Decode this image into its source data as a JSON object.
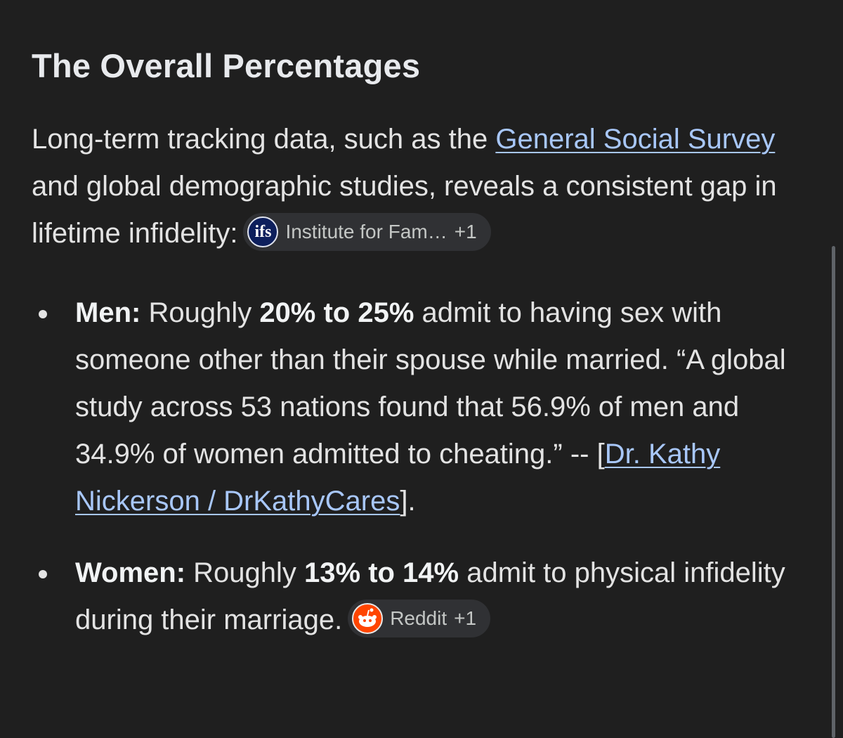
{
  "header": {
    "title": "The Overall Percentages"
  },
  "intro": {
    "text_before": "Long-term tracking data, such as the ",
    "link": "General Social Survey",
    "text_after": " and global demographic studies, reveals a consistent gap in lifetime infidelity:",
    "source_chip": {
      "icon": "ifs",
      "label": "Institute for Fam…",
      "count": "+1"
    }
  },
  "bullets": [
    {
      "label": "Men:",
      "text_before": " Roughly ",
      "bold": "20% to 25%",
      "text_after": " admit to having sex with someone other than their spouse while married. “A global study across 53 nations found that 56.9% of men and 34.9% of women admitted to cheating.” -- [",
      "link": "Dr. Kathy Nickerson / DrKathyCares",
      "text_end": "]."
    },
    {
      "label": "Women:",
      "text_before": " Roughly ",
      "bold": "13% to 14%",
      "text_after": " admit to physical infidelity during their marriage.",
      "source_chip": {
        "label": "Reddit",
        "count": "+1"
      }
    }
  ]
}
